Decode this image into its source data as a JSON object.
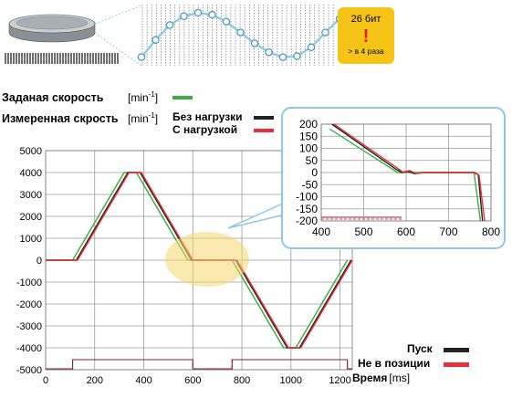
{
  "header": {
    "bits_label": "26 бит",
    "bang": "!",
    "times_label": "> в 4 раза"
  },
  "legend": {
    "set_speed": "Заданая скорость",
    "measured_speed": "Измеренная скрость",
    "unit_prefix": "[min",
    "unit_exp": "-1",
    "unit_suffix": "]",
    "no_load": "Без нагрузки",
    "with_load": "С нагрузкой",
    "start": "Пуск",
    "not_in_position": "Не в позиции",
    "time_label": "Время",
    "time_unit": "[ms]"
  },
  "colors": {
    "set_speed": "#3cb043",
    "no_load": "#222222",
    "with_load": "#e8303a",
    "highlight": "#f5d76e",
    "callout_border": "#8cc8e6",
    "encoder_curve": "#8ecae6",
    "badge": "#f6c417",
    "pulse": "#8b1c3c"
  },
  "chart_data": [
    {
      "type": "line",
      "x_ticks": [
        0,
        200,
        400,
        600,
        800,
        1000,
        1200
      ],
      "y_ticks": [
        5000,
        4000,
        3000,
        2000,
        1000,
        0,
        -1000,
        -2000,
        -3000,
        -4000,
        -5000
      ],
      "xlim": [
        0,
        1250
      ],
      "ylim": [
        -5000,
        5000
      ],
      "grid": true,
      "series": [
        {
          "name": "Заданая скорость",
          "x": [
            0,
            110,
            320,
            370,
            580,
            760,
            970,
            1020,
            1230
          ],
          "y": [
            0,
            0,
            4000,
            4000,
            0,
            0,
            -4000,
            -4000,
            0
          ]
        },
        {
          "name": "Без нагрузки",
          "x": [
            0,
            125,
            335,
            385,
            595,
            775,
            985,
            1035,
            1245
          ],
          "y": [
            0,
            0,
            4000,
            4000,
            0,
            0,
            -4000,
            -4000,
            0
          ]
        },
        {
          "name": "С нагрузкой",
          "x": [
            0,
            130,
            340,
            390,
            600,
            780,
            990,
            1040,
            1250
          ],
          "y": [
            0,
            0,
            4000,
            4000,
            0,
            0,
            -4000,
            -4000,
            0
          ]
        }
      ],
      "signals": {
        "start": {
          "name": "Пуск",
          "high_intervals": [
            [
              110,
              600
            ],
            [
              760,
              1230
            ]
          ]
        },
        "not_in_position": {
          "name": "Не в позиции",
          "high_intervals": [
            [
              110,
              600
            ],
            [
              760,
              1230
            ]
          ]
        }
      }
    },
    {
      "type": "line",
      "x_ticks": [
        400,
        500,
        600,
        700,
        800
      ],
      "y_ticks": [
        200,
        150,
        100,
        50,
        0,
        -50,
        -100,
        -150,
        -200
      ],
      "xlim": [
        400,
        800
      ],
      "ylim": [
        -200,
        200
      ],
      "grid": true,
      "series": [
        {
          "name": "Заданая скорость",
          "x": [
            420,
            580,
            760,
            775
          ],
          "y": [
            180,
            0,
            0,
            -200
          ]
        },
        {
          "name": "Без нагрузки",
          "x": [
            425,
            575,
            590,
            605,
            620,
            640,
            760,
            770,
            780
          ],
          "y": [
            200,
            15,
            0,
            5,
            -5,
            0,
            0,
            -10,
            -200
          ]
        },
        {
          "name": "С нагрузкой",
          "x": [
            430,
            578,
            592,
            608,
            622,
            645,
            762,
            772,
            785
          ],
          "y": [
            200,
            20,
            2,
            8,
            -3,
            0,
            0,
            -12,
            -200
          ]
        }
      ]
    }
  ],
  "encoder_chart": {
    "type": "line",
    "values": [
      0.1,
      0.45,
      0.75,
      0.93,
      1.0,
      0.96,
      0.82,
      0.6,
      0.38,
      0.2,
      0.1,
      0.12,
      0.3,
      0.6,
      0.88
    ]
  }
}
